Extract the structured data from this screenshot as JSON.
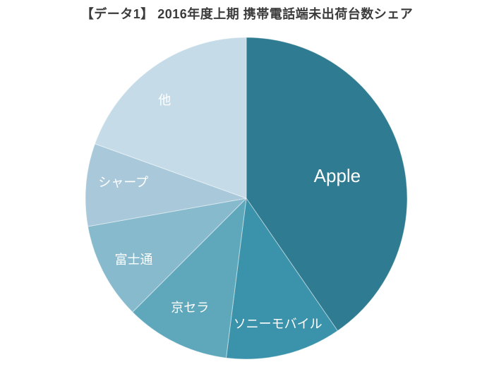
{
  "title": "【データ1】 2016年度上期 携帯電話端未出荷台数シェア",
  "chart_data": {
    "type": "pie",
    "title": "【データ1】 2016年度上期 携帯電話端未出荷台数シェア",
    "legend": "none",
    "data_labels": "category-names-inside-slices",
    "start_angle_deg": 0,
    "direction": "clockwise",
    "categories": [
      "Apple",
      "ソニーモバイル",
      "京セラ",
      "富士通",
      "シャープ",
      "他"
    ],
    "values_share_pct": [
      40.4,
      11.6,
      10.5,
      9.7,
      8.3,
      19.5
    ],
    "slices": [
      {
        "id": "apple",
        "label": "Apple",
        "share_pct": 40.4,
        "color": "#2F7B91",
        "label_color": "#ffffff",
        "label_angle_deg": 77,
        "label_r_frac": 0.58,
        "font_size": 26
      },
      {
        "id": "sony-mobile",
        "label": "ソニーモバイル",
        "share_pct": 11.6,
        "color": "#3A93AA",
        "label_color": "#ffffff",
        "label_angle_deg": 166,
        "label_r_frac": 0.81,
        "font_size": 18
      },
      {
        "id": "kyocera",
        "label": "京セラ",
        "share_pct": 10.5,
        "color": "#5FA8BC",
        "label_color": "#ffffff",
        "label_angle_deg": 207,
        "label_r_frac": 0.77,
        "font_size": 18
      },
      {
        "id": "fujitsu",
        "label": "富士通",
        "share_pct": 9.7,
        "color": "#86BACC",
        "label_color": "#ffffff",
        "label_angle_deg": 241,
        "label_r_frac": 0.8,
        "font_size": 18
      },
      {
        "id": "sharp",
        "label": "シャープ",
        "share_pct": 8.3,
        "color": "#A9C9DB",
        "label_color": "#ffffff",
        "label_angle_deg": 277,
        "label_r_frac": 0.77,
        "font_size": 18
      },
      {
        "id": "others",
        "label": "他",
        "share_pct": 19.5,
        "color": "#C5DCE8",
        "label_color": "#ffffff",
        "label_angle_deg": 320,
        "label_r_frac": 0.79,
        "font_size": 18
      }
    ],
    "colors": {
      "background": "#ffffff",
      "slice_separator": "rgba(255,255,255,0.45)",
      "title_text": "#3b3b3b"
    }
  }
}
